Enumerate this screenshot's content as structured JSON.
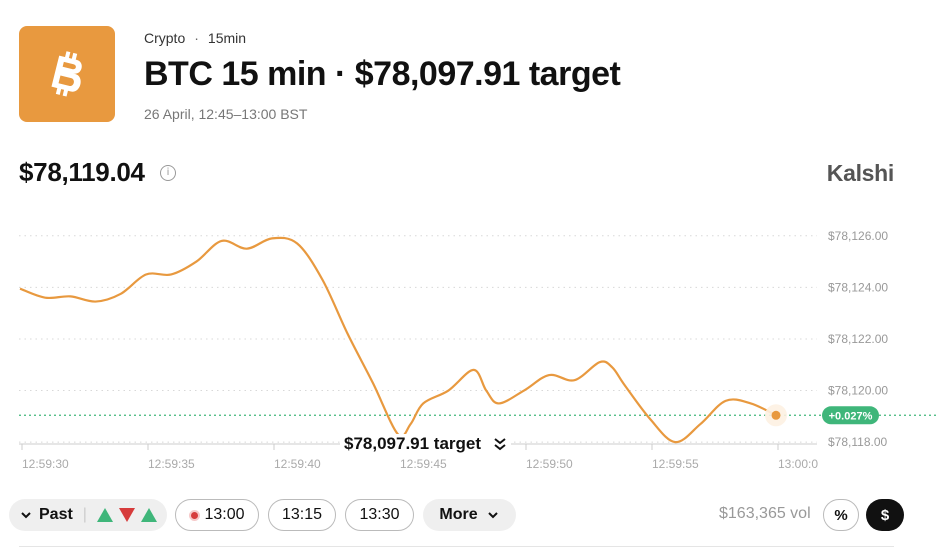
{
  "header": {
    "category": "Crypto",
    "separator": "·",
    "interval": "15min",
    "title": "BTC 15 min · $78,097.91 target",
    "subtitle": "26 April, 12:45–13:00 BST",
    "logo_icon": "bitcoin-icon",
    "logo_color": "#E8993F"
  },
  "price": {
    "current": "$78,119.04",
    "info_icon": "info-icon"
  },
  "brand": "Kalshi",
  "chart_data": {
    "type": "line",
    "x": [
      "12:59:29.0",
      "12:59:30.0",
      "12:59:31.0",
      "12:59:32.0",
      "12:59:33.0",
      "12:59:34.0",
      "12:59:35.0",
      "12:59:36.0",
      "12:59:37.0",
      "12:59:38.0",
      "12:59:39.0",
      "12:59:40.0",
      "12:59:41.0",
      "12:59:42.0",
      "12:59:43.0",
      "12:59:44.0",
      "12:59:44.5",
      "12:59:45.0",
      "12:59:46.0",
      "12:59:47.0",
      "12:59:47.5",
      "12:59:48.0",
      "12:59:49.0",
      "12:59:50.0",
      "12:59:51.0",
      "12:59:52.0",
      "12:59:52.5",
      "12:59:53.0",
      "12:59:54.0",
      "12:59:55.0",
      "12:59:56.0",
      "12:59:57.0",
      "12:59:58.0",
      "12:59:59.0"
    ],
    "y": [
      78123.95,
      78123.6,
      78123.65,
      78123.45,
      78123.75,
      78124.5,
      78124.5,
      78125.0,
      78125.8,
      78125.5,
      78125.9,
      78125.7,
      78124.3,
      78122.2,
      78120.3,
      78118.3,
      78118.7,
      78119.5,
      78120.0,
      78120.8,
      78120.0,
      78119.5,
      78120.0,
      78120.6,
      78120.4,
      78121.1,
      78120.9,
      78120.2,
      78118.9,
      78118.0,
      78118.7,
      78119.6,
      78119.5,
      78119.04
    ],
    "y_ticks": [
      "$78,126.00",
      "$78,124.00",
      "$78,122.00",
      "$78,120.00",
      "$78,118.00"
    ],
    "y_tick_values": [
      78126,
      78124,
      78122,
      78120,
      78118
    ],
    "x_ticks": [
      "12:59:30",
      "12:59:35",
      "12:59:40",
      "12:59:45",
      "12:59:50",
      "12:59:55",
      "13:00:0"
    ],
    "ylim": [
      78117.5,
      78127.0
    ],
    "reference_line": 78119.04,
    "change_badge": "+0.027%",
    "line_color": "#E8993F",
    "ref_color": "#3FB67A",
    "grid": true
  },
  "target_toggle": {
    "label": "$78,097.91 target",
    "icon": "double-chevron-icon"
  },
  "controls": {
    "past_label": "Past",
    "past_icon": "chevron-down-icon",
    "indicators": [
      "up",
      "down",
      "up"
    ],
    "up_color": "#3FB67A",
    "down_color": "#D63B3B",
    "times": [
      "13:00",
      "13:15",
      "13:30"
    ],
    "live_icon": "live-dot-icon",
    "more_label": "More",
    "more_icon": "chevron-down-icon",
    "volume": "$163,365 vol",
    "percent_label": "%",
    "dollar_label": "$"
  }
}
